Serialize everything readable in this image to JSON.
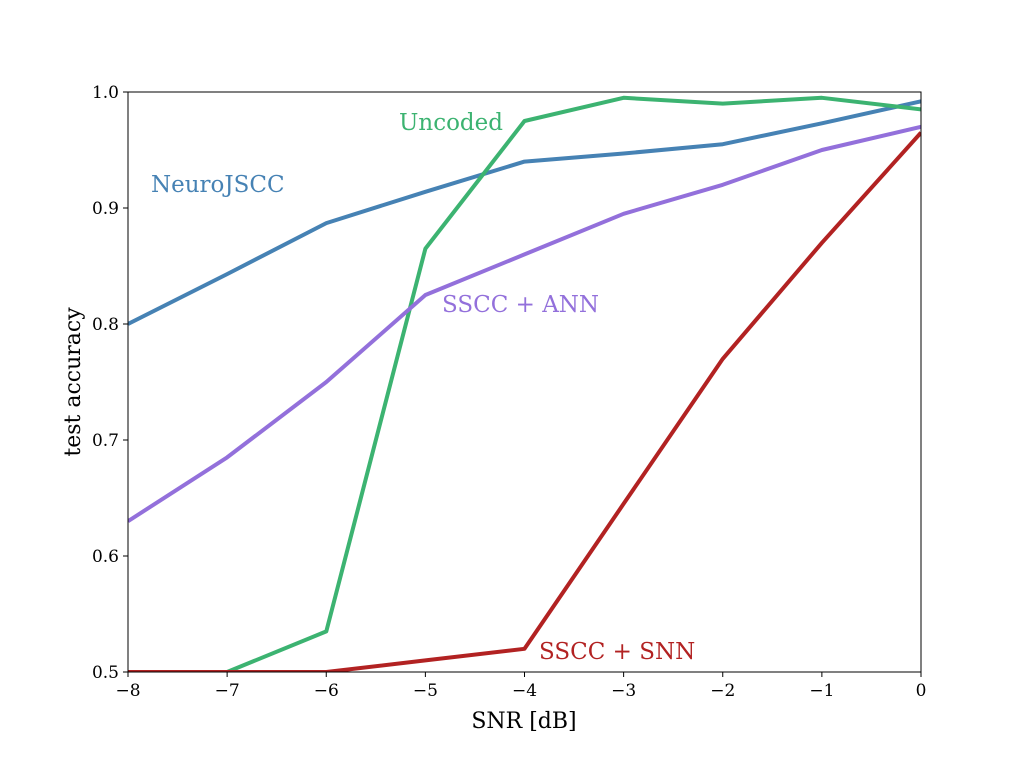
{
  "chart_data": {
    "type": "line",
    "title": "",
    "xlabel": "SNR [dB]",
    "ylabel": "test accuracy",
    "xlim": [
      -8,
      0
    ],
    "ylim": [
      0.5,
      1.0
    ],
    "grid": false,
    "legend": "inline labels",
    "x_ticks": [
      -8,
      -7,
      -6,
      -5,
      -4,
      -3,
      -2,
      -1,
      0
    ],
    "x_tick_labels": [
      "−8",
      "−7",
      "−6",
      "−5",
      "−4",
      "−3",
      "−2",
      "−1",
      "0"
    ],
    "y_ticks": [
      0.5,
      0.6,
      0.7,
      0.8,
      0.9,
      1.0
    ],
    "y_tick_labels": [
      "0.5",
      "0.6",
      "0.7",
      "0.8",
      "0.9",
      "1.0"
    ],
    "series": [
      {
        "name": "NeuroJSCC",
        "color": "#4682b4",
        "x": [
          -8,
          -7,
          -6,
          -5,
          -4,
          -3,
          -2,
          -1,
          0
        ],
        "y": [
          0.8,
          0.843,
          0.887,
          0.914,
          0.94,
          0.947,
          0.955,
          0.973,
          0.992
        ]
      },
      {
        "name": "Uncoded",
        "color": "#3cb371",
        "x": [
          -8,
          -7,
          -6,
          -5,
          -4,
          -3,
          -2,
          -1,
          0
        ],
        "y": [
          0.495,
          0.5,
          0.535,
          0.865,
          0.975,
          0.995,
          0.99,
          0.995,
          0.985
        ]
      },
      {
        "name": "SSCC + ANN",
        "color": "#9370db",
        "x": [
          -8,
          -7,
          -6,
          -5,
          -4,
          -3,
          -2,
          -1,
          0
        ],
        "y": [
          0.63,
          0.685,
          0.75,
          0.825,
          0.86,
          0.895,
          0.92,
          0.95,
          0.97
        ]
      },
      {
        "name": "SSCC + SNN",
        "color": "#b22222",
        "x": [
          -8,
          -7,
          -6,
          -5,
          -4,
          -3,
          -2,
          -1,
          0
        ],
        "y": [
          0.5,
          0.5,
          0.5,
          0.51,
          0.52,
          0.645,
          0.77,
          0.87,
          0.965
        ]
      }
    ]
  }
}
